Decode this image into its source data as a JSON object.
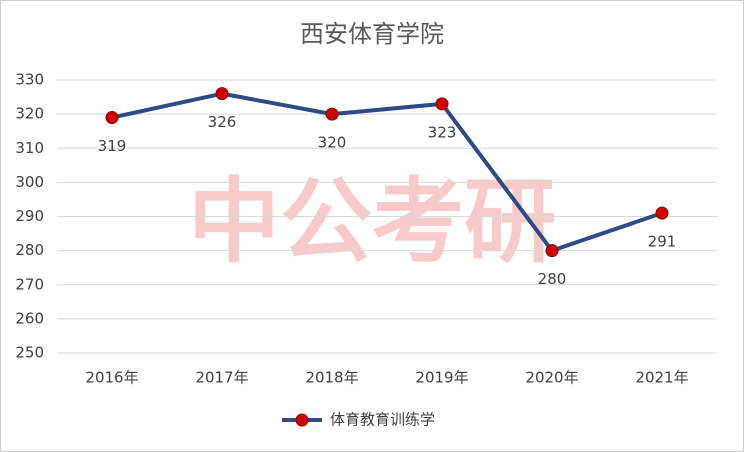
{
  "chart_data": {
    "type": "line",
    "title": "西安体育学院",
    "watermark": "中公考研",
    "categories": [
      "2016年",
      "2017年",
      "2018年",
      "2019年",
      "2020年",
      "2021年"
    ],
    "series": [
      {
        "name": "体育教育训练学",
        "color": "#2f4b87",
        "marker_color": "#cc0000",
        "values": [
          319,
          326,
          320,
          323,
          280,
          291
        ]
      }
    ],
    "ylim": [
      250,
      330
    ],
    "yticks": [
      250,
      260,
      270,
      280,
      290,
      300,
      310,
      320,
      330
    ],
    "grid": true,
    "legend": "bottom"
  }
}
